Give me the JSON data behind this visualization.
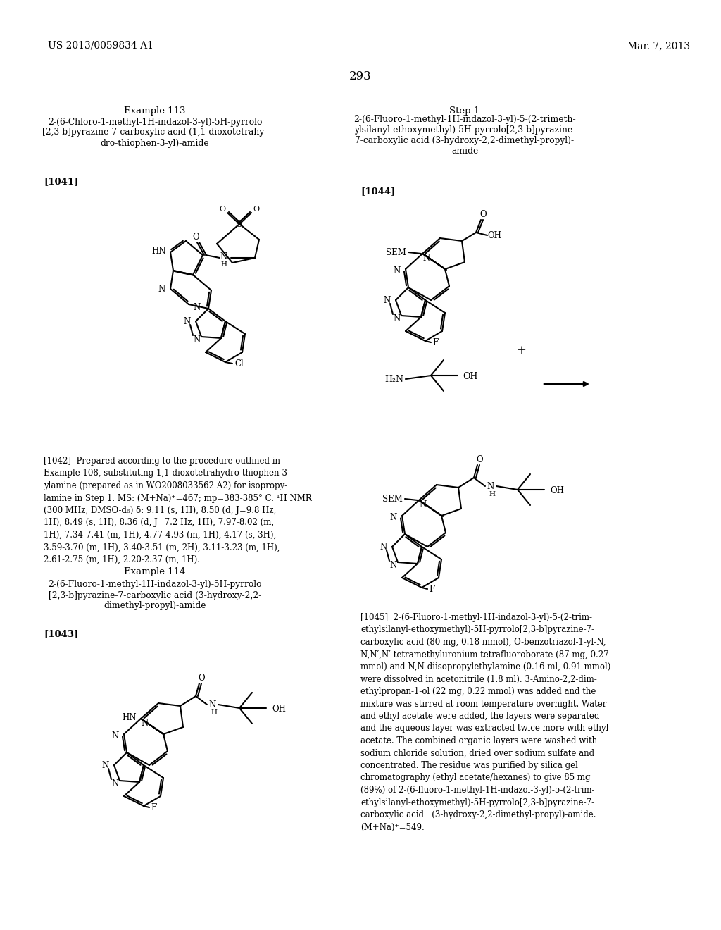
{
  "patent_number": "US 2013/0059834 A1",
  "patent_date": "Mar. 7, 2013",
  "page_number": "293",
  "bg_color": "#ffffff",
  "example113_title": "Example 113",
  "example113_name": "2-(6-Chloro-1-methyl-1H-indazol-3-yl)-5H-pyrrolo\n[2,3-b]pyrazine-7-carboxylic acid (1,1-dioxotetrahy-\ndro-thiophen-3-yl)-amide",
  "example113_ref": "[1041]",
  "step1_title": "Step 1",
  "step1_name": "2-(6-Fluoro-1-methyl-1H-indazol-3-yl)-5-(2-trimeth-\nylsilanyl-ethoxymethyl)-5H-pyrrolo[2,3-b]pyrazine-\n7-carboxylic acid (3-hydroxy-2,2-dimethyl-propyl)-\namide",
  "step1_ref": "[1044]",
  "example114_title": "Example 114",
  "example114_name": "2-(6-Fluoro-1-methyl-1H-indazol-3-yl)-5H-pyrrolo\n[2,3-b]pyrazine-7-carboxylic acid (3-hydroxy-2,2-\ndimethyl-propyl)-amide",
  "example114_ref": "[1043]",
  "para1042": "[1042]   Prepared according to the procedure outlined in Example 108, substituting 1,1-dioxotetrahydro-thiophen-3-ylamine (prepared as in WO2008033562 A2) for isopropylamine in Step 1. MS: (M+Na)+=467; mp=383-385° C. 1H NMR (300 MHz, DMSO-d6) δ: 9.11 (s, 1H), 8.50 (d, J=9.8 Hz, 1H), 8.49 (s, 1H), 8.36 (d, J=7.2 Hz, 1H), 7.97-8.02 (m, 1H), 7.34-7.41 (m, 1H), 4.77-4.93 (m, 1H), 4.17 (s, 3H), 3.59-3.70 (m, 1H), 3.40-3.51 (m, 2H), 3.11-3.23 (m, 1H), 2.61-2.75 (m, 1H), 2.20-2.37 (m, 1H).",
  "para1045": "[1045]   2-(6-Fluoro-1-methyl-1H-indazol-3-yl)-5-(2-trimethylsilanyl-ethoxymethyl)-5H-pyrrolo[2,3-b]pyrazine-7-carboxylic acid (80 mg, 0.18 mmol), O-benzotriazol-1-yl-N,N,N',N'-tetramethyluronium tetrafluoroborate (87 mg, 0.27 mmol) and N,N-diisopropylethylamine (0.16 ml, 0.91 mmol) were dissolved in acetonitrile (1.8 ml). 3-Amino-2,2-dimethylpropan-1-ol (22 mg, 0.22 mmol) was added and the mixture was stirred at room temperature overnight. Water and ethyl acetate were added, the layers were separated and the aqueous layer was extracted twice more with ethyl acetate. The combined organic layers were washed with sodium chloride solution, dried over sodium sulfate and concentrated. The residue was purified by silica gel chromatography (ethyl acetate/hexanes) to give 85 mg (89%) of 2-(6-fluoro-1-methyl-1H-indazol-3-yl)-5-(2-trimethylsilanyl-ethoxymethyl)-5H-pyrrolo[2,3-b]pyrazine-7-carboxylic acid (3-hydroxy-2,2-dimethyl-propyl)-amide. (M+Na)+=549."
}
